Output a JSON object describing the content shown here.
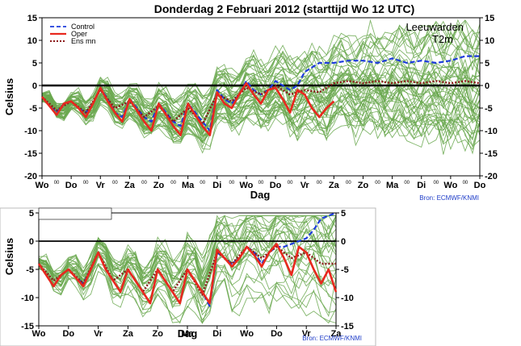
{
  "title": "Donderdag  2 Februari  2012  (starttijd  Wo 12 UTC)",
  "station": "Leeuwarden",
  "parameter": "T2m",
  "source": "Bron:  ECMWF/KNMI",
  "colors": {
    "control": "#1e3cdc",
    "oper": "#e8281e",
    "ens_mean": "#8b1a1a",
    "members": "#6aa84f",
    "zero_line": "#000000"
  },
  "chart_data": [
    {
      "type": "line",
      "title": "Donderdag  2 Februari  2012  (starttijd  Wo 12 UTC)",
      "xlabel": "Dag",
      "ylabel": "Celsius",
      "ylim": [
        -20,
        15
      ],
      "yticks": [
        -20,
        -15,
        -10,
        -5,
        0,
        5,
        10,
        15
      ],
      "xlim": [
        0,
        15
      ],
      "day_labels": [
        "Wo",
        "Do",
        "Vr",
        "Za",
        "Zo",
        "Ma",
        "Di",
        "Wo",
        "Do",
        "Vr",
        "Za",
        "Zo",
        "Ma",
        "Di",
        "Wo",
        "Do"
      ],
      "x_superscript": "00",
      "legend": [
        "Control",
        "Oper",
        "Ens mn"
      ],
      "legend_position": "top-left",
      "annotation": [
        "Leeuwarden",
        "T2m"
      ],
      "source": "Bron:  ECMWF/KNMI",
      "series": [
        {
          "name": "Control",
          "style": "dashed",
          "x": [
            0,
            0.25,
            0.5,
            0.75,
            1,
            1.25,
            1.5,
            1.75,
            2,
            2.25,
            2.5,
            2.75,
            3,
            3.25,
            3.5,
            3.75,
            4,
            4.25,
            4.5,
            4.75,
            5,
            5.25,
            5.5,
            5.75,
            6,
            6.25,
            6.5,
            6.75,
            7,
            7.25,
            7.5,
            7.75,
            8,
            8.25,
            8.5,
            8.75,
            9,
            9.25,
            9.5,
            9.75,
            10,
            10.5,
            11,
            11.5,
            12,
            12.5,
            13,
            13.5,
            14,
            14.5,
            15
          ],
          "y": [
            -2.5,
            -4.5,
            -6,
            -4,
            -3.5,
            -5,
            -6,
            -4,
            -0.5,
            -3,
            -6,
            -7,
            -3,
            -5,
            -7,
            -8,
            -4,
            -6,
            -8,
            -9,
            -4,
            -6,
            -8,
            -10,
            -1,
            -3,
            -4,
            -2,
            1,
            -1,
            -2,
            -1,
            1,
            0,
            -1,
            0,
            3,
            4,
            5,
            5,
            5,
            5.5,
            5.5,
            5,
            6,
            5,
            5.5,
            5,
            5.5,
            6.5,
            6.5
          ]
        },
        {
          "name": "Oper",
          "style": "solid",
          "x": [
            0,
            0.25,
            0.5,
            0.75,
            1,
            1.25,
            1.5,
            1.75,
            2,
            2.25,
            2.5,
            2.75,
            3,
            3.25,
            3.5,
            3.75,
            4,
            4.25,
            4.5,
            4.75,
            5,
            5.25,
            5.5,
            5.75,
            6,
            6.25,
            6.5,
            6.75,
            7,
            7.25,
            7.5,
            7.75,
            8,
            8.25,
            8.5,
            8.75,
            9,
            9.25,
            9.5,
            9.75,
            10
          ],
          "y": [
            -2.5,
            -4.5,
            -6.5,
            -4,
            -3.5,
            -5,
            -7,
            -4,
            -0.5,
            -3.5,
            -6,
            -8,
            -3,
            -5.5,
            -8,
            -10,
            -4,
            -6.5,
            -9,
            -11,
            -4,
            -6.5,
            -9,
            -11,
            -1.5,
            -4,
            -5,
            -2,
            0.5,
            -2,
            -4,
            -1,
            -0.5,
            -3,
            -6,
            -1,
            -2,
            -5,
            -7,
            -5,
            -3.5
          ]
        },
        {
          "name": "Ens mn",
          "style": "dotted",
          "x": [
            0,
            0.5,
            1,
            1.5,
            2,
            2.5,
            3,
            3.5,
            4,
            4.5,
            5,
            5.5,
            6,
            6.5,
            7,
            7.5,
            8,
            8.5,
            9,
            9.5,
            10,
            10.5,
            11,
            11.5,
            12,
            12.5,
            13,
            13.5,
            14,
            14.5,
            15
          ],
          "y": [
            -2.5,
            -5.5,
            -3.5,
            -6,
            -1,
            -5,
            -3.5,
            -7,
            -4.5,
            -8,
            -5,
            -8.5,
            -2,
            -3.5,
            -0.5,
            -2,
            0,
            -2,
            -1,
            -1.5,
            0.5,
            1,
            0.5,
            1,
            0.5,
            1,
            0.5,
            1,
            0.5,
            1,
            0.5
          ]
        }
      ]
    },
    {
      "type": "line",
      "xlabel": "Dag",
      "ylabel": "Celsius",
      "ylim": [
        -15,
        5
      ],
      "yticks": [
        -15,
        -10,
        -5,
        0,
        5
      ],
      "xlim": [
        0,
        10
      ],
      "day_labels": [
        "Wo",
        "Do",
        "Vr",
        "Za",
        "Zo",
        "Ma",
        "Di",
        "Wo",
        "Do",
        "Vr",
        "Za"
      ],
      "source": "Bron: ECMWF/KNMI",
      "series": [
        {
          "name": "Control",
          "style": "dashed",
          "x": [
            0,
            0.25,
            0.5,
            0.75,
            1,
            1.25,
            1.5,
            1.75,
            2,
            2.25,
            2.5,
            2.75,
            3,
            3.25,
            3.5,
            3.75,
            4,
            4.25,
            4.5,
            4.75,
            5,
            5.25,
            5.5,
            5.75,
            6,
            6.25,
            6.5,
            6.75,
            7,
            7.25,
            7.5,
            7.75,
            8,
            8.25,
            8.5,
            8.75,
            9,
            9.25,
            9.5,
            9.75,
            10
          ],
          "y": [
            -4,
            -6,
            -8,
            -6,
            -5,
            -6.5,
            -7.5,
            -5,
            -2,
            -5,
            -7,
            -9,
            -5,
            -7,
            -9,
            -11,
            -5,
            -7,
            -9,
            -11,
            -5,
            -7,
            -9,
            -11.5,
            -2,
            -3,
            -4,
            -3,
            -1,
            -2,
            -4,
            -2,
            -1,
            -1,
            -0.5,
            0,
            0.5,
            2,
            4,
            4.5,
            5
          ]
        },
        {
          "name": "Oper",
          "style": "solid",
          "x": [
            0,
            0.25,
            0.5,
            0.75,
            1,
            1.25,
            1.5,
            1.75,
            2,
            2.25,
            2.5,
            2.75,
            3,
            3.25,
            3.5,
            3.75,
            4,
            4.25,
            4.5,
            4.75,
            5,
            5.25,
            5.5,
            5.75,
            6,
            6.25,
            6.5,
            6.75,
            7,
            7.25,
            7.5,
            7.75,
            8,
            8.25,
            8.5,
            8.75,
            9,
            9.25,
            9.5,
            9.75,
            10
          ],
          "y": [
            -4,
            -6,
            -8,
            -6,
            -5,
            -6.5,
            -8,
            -5,
            -2,
            -5,
            -7,
            -9,
            -5,
            -7,
            -9,
            -11,
            -5,
            -7,
            -9,
            -11,
            -5,
            -7,
            -9,
            -11,
            -1.5,
            -3,
            -4.5,
            -3,
            -1,
            -2.5,
            -4.5,
            -2,
            -0.5,
            -3,
            -6,
            -1,
            -2,
            -5,
            -7.5,
            -5,
            -9
          ]
        },
        {
          "name": "Ens mn",
          "style": "dotted",
          "x": [
            0,
            0.5,
            1,
            1.5,
            2,
            2.5,
            3,
            3.5,
            4,
            4.5,
            5,
            5.5,
            6,
            6.5,
            7,
            7.5,
            8,
            8.5,
            9,
            9.5,
            10
          ],
          "y": [
            -4,
            -7,
            -5,
            -7.5,
            -2,
            -7,
            -5,
            -9,
            -5,
            -9,
            -5,
            -9.5,
            -2,
            -4,
            -1,
            -3,
            -1,
            -3,
            -2,
            -4,
            -4
          ]
        }
      ]
    }
  ]
}
